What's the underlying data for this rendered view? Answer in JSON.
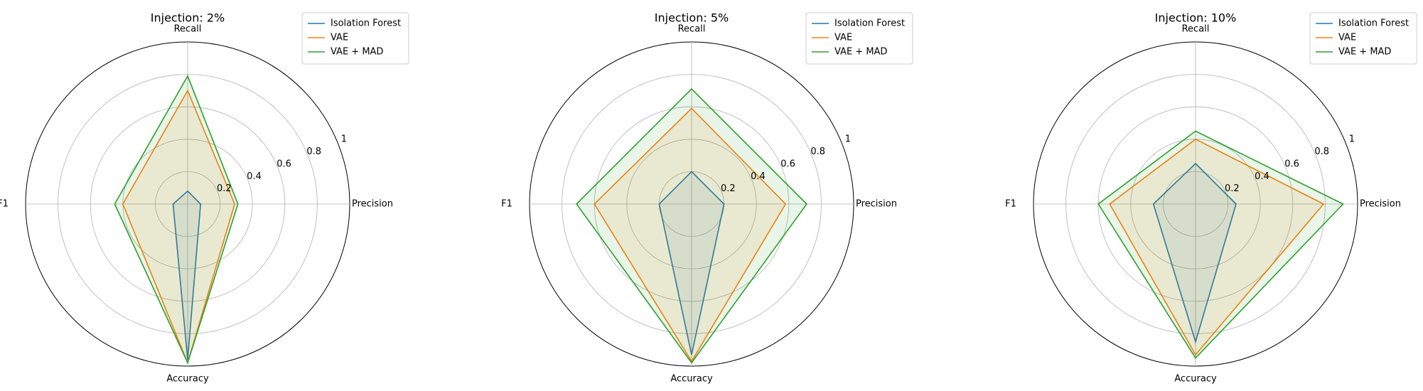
{
  "chart_data": [
    {
      "type": "radar",
      "title": "Injection: 2%",
      "categories": [
        "Precision",
        "Recall",
        "F1",
        "Accuracy"
      ],
      "series": [
        {
          "name": "Isolation Forest",
          "color": "#1f77b4",
          "values": [
            0.08,
            0.08,
            0.09,
            0.96
          ]
        },
        {
          "name": "VAE",
          "color": "#ff7f0e",
          "values": [
            0.29,
            0.7,
            0.4,
            0.98
          ]
        },
        {
          "name": "VAE + MAD",
          "color": "#2ca02c",
          "values": [
            0.31,
            0.79,
            0.45,
            0.98
          ]
        }
      ],
      "rlim": [
        0,
        1.0
      ],
      "rticks": [
        0.2,
        0.4,
        0.6,
        0.8,
        1.0
      ],
      "legend": "upper right"
    },
    {
      "type": "radar",
      "title": "Injection: 5%",
      "categories": [
        "Precision",
        "Recall",
        "F1",
        "Accuracy"
      ],
      "series": [
        {
          "name": "Isolation Forest",
          "color": "#1f77b4",
          "values": [
            0.2,
            0.2,
            0.2,
            0.93
          ]
        },
        {
          "name": "VAE",
          "color": "#ff7f0e",
          "values": [
            0.58,
            0.59,
            0.6,
            0.97
          ]
        },
        {
          "name": "VAE + MAD",
          "color": "#2ca02c",
          "values": [
            0.71,
            0.71,
            0.71,
            0.98
          ]
        }
      ],
      "rlim": [
        0,
        1.0
      ],
      "rticks": [
        0.2,
        0.4,
        0.6,
        0.8,
        1.0
      ],
      "legend": "upper right"
    },
    {
      "type": "radar",
      "title": "Injection: 10%",
      "categories": [
        "Precision",
        "Recall",
        "F1",
        "Accuracy"
      ],
      "series": [
        {
          "name": "Isolation Forest",
          "color": "#1f77b4",
          "values": [
            0.25,
            0.25,
            0.26,
            0.85
          ]
        },
        {
          "name": "VAE",
          "color": "#ff7f0e",
          "values": [
            0.79,
            0.4,
            0.53,
            0.93
          ]
        },
        {
          "name": "VAE + MAD",
          "color": "#2ca02c",
          "values": [
            0.91,
            0.45,
            0.6,
            0.95
          ]
        }
      ],
      "rlim": [
        0,
        1.0
      ],
      "rticks": [
        0.2,
        0.4,
        0.6,
        0.8,
        1.0
      ],
      "legend": "upper right"
    }
  ]
}
